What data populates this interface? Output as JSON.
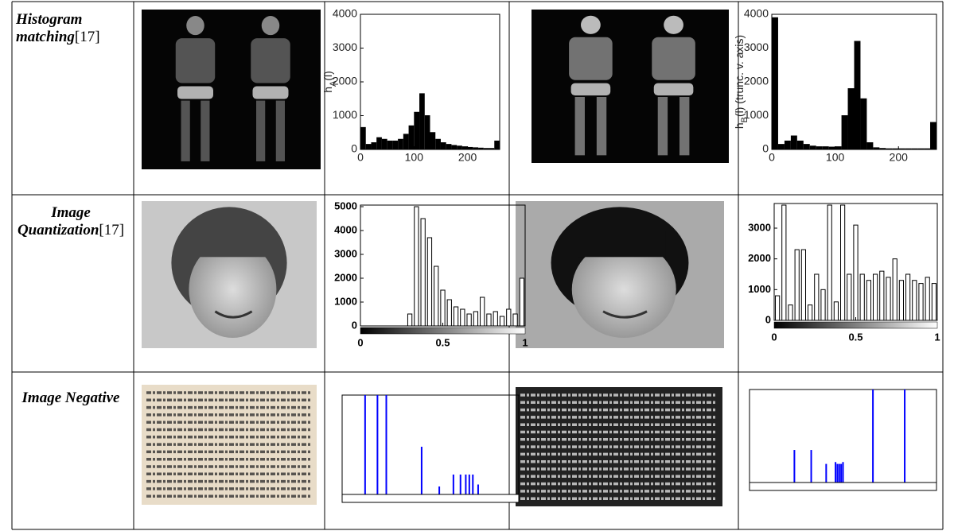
{
  "table": {
    "rows": [
      {
        "label": "Histogram matching",
        "ref": "[17]",
        "before": {
          "type": "histogram",
          "ylabel": [
            "h",
            "A",
            "(l)"
          ],
          "color": "#000000",
          "bins": [
            0,
            10,
            20,
            30,
            40,
            50,
            60,
            70,
            80,
            90,
            100,
            110,
            120,
            130,
            140,
            150,
            160,
            170,
            180,
            190,
            200,
            210,
            220,
            230,
            240,
            250,
            260
          ],
          "values": [
            650,
            150,
            200,
            350,
            300,
            250,
            250,
            300,
            450,
            700,
            1100,
            1650,
            1000,
            500,
            300,
            200,
            150,
            120,
            100,
            80,
            60,
            50,
            40,
            30,
            30,
            250
          ],
          "xlim": [
            0,
            260
          ],
          "ylim": [
            0,
            4000
          ],
          "xticks": [
            0,
            100,
            200
          ],
          "yticks": [
            0,
            1000,
            2000,
            3000,
            4000
          ]
        },
        "after": {
          "type": "histogram",
          "ylabel": [
            "h",
            "B",
            "(l) (trunc. v. axis)"
          ],
          "color": "#000000",
          "bins": [
            0,
            10,
            20,
            30,
            40,
            50,
            60,
            70,
            80,
            90,
            100,
            110,
            120,
            130,
            140,
            150,
            160,
            170,
            180,
            190,
            200,
            210,
            220,
            230,
            240,
            250,
            260
          ],
          "values": [
            3900,
            150,
            250,
            400,
            250,
            150,
            100,
            80,
            80,
            70,
            80,
            1000,
            1800,
            3200,
            1500,
            200,
            50,
            30,
            20,
            20,
            20,
            20,
            20,
            20,
            20,
            800
          ],
          "xlim": [
            0,
            260
          ],
          "ylim": [
            0,
            4000
          ],
          "xticks": [
            0,
            100,
            200
          ],
          "yticks": [
            0,
            1000,
            2000,
            3000,
            4000
          ]
        }
      },
      {
        "label": "Image Quantization",
        "ref": "[17]",
        "before": {
          "type": "histogram",
          "color": "#000000",
          "bins": [
            0,
            0.04,
            0.08,
            0.12,
            0.16,
            0.2,
            0.24,
            0.28,
            0.32,
            0.36,
            0.4,
            0.44,
            0.48,
            0.52,
            0.56,
            0.6,
            0.64,
            0.68,
            0.72,
            0.76,
            0.8,
            0.84,
            0.88,
            0.92,
            0.96,
            1
          ],
          "values": [
            0,
            0,
            0,
            0,
            0,
            0,
            0,
            500,
            5000,
            4500,
            3700,
            2500,
            1500,
            1100,
            800,
            700,
            500,
            600,
            1200,
            500,
            600,
            400,
            700,
            500,
            2000
          ],
          "xlim": [
            0,
            1
          ],
          "ylim": [
            0,
            5000
          ],
          "xticks": [
            0,
            0.5,
            1
          ],
          "yticks": [
            0,
            1000,
            2000,
            3000,
            4000,
            5000
          ]
        },
        "after": {
          "type": "histogram",
          "color": "#000000",
          "bins": [
            0,
            0.04,
            0.08,
            0.12,
            0.16,
            0.2,
            0.24,
            0.28,
            0.32,
            0.36,
            0.4,
            0.44,
            0.48,
            0.52,
            0.56,
            0.6,
            0.64,
            0.68,
            0.72,
            0.76,
            0.8,
            0.84,
            0.88,
            0.92,
            0.96,
            1
          ],
          "values": [
            800,
            3750,
            500,
            2300,
            2300,
            500,
            1500,
            1000,
            3750,
            600,
            3750,
            1500,
            3100,
            1500,
            1300,
            1500,
            1600,
            1400,
            2000,
            1300,
            1500,
            1300,
            1200,
            1400,
            1200
          ],
          "xlim": [
            0,
            1
          ],
          "ylim": [
            0,
            3750
          ],
          "xticks": [
            0,
            0.5,
            1
          ],
          "yticks": [
            0,
            1000,
            2000,
            3000
          ]
        }
      },
      {
        "label": "Image Negative",
        "before": {
          "type": "bar",
          "color": "#0000ff",
          "x": [
            0.13,
            0.2,
            0.25,
            0.45,
            0.55,
            0.63,
            0.67,
            0.7,
            0.72,
            0.74,
            0.77
          ],
          "values": [
            1,
            1,
            1,
            0.48,
            0.08,
            0.2,
            0.2,
            0.2,
            0.2,
            0.2,
            0.1
          ],
          "xlim": [
            0,
            1
          ],
          "ylim": [
            0,
            1
          ]
        },
        "after": {
          "type": "bar",
          "color": "#0000ff",
          "x": [
            0.24,
            0.33,
            0.41,
            0.46,
            0.47,
            0.48,
            0.49,
            0.5,
            0.66,
            0.83
          ],
          "values": [
            0.35,
            0.35,
            0.2,
            0.22,
            0.2,
            0.2,
            0.2,
            0.22,
            1,
            1
          ],
          "xlim": [
            0,
            1
          ],
          "ylim": [
            0,
            1
          ]
        }
      }
    ]
  }
}
